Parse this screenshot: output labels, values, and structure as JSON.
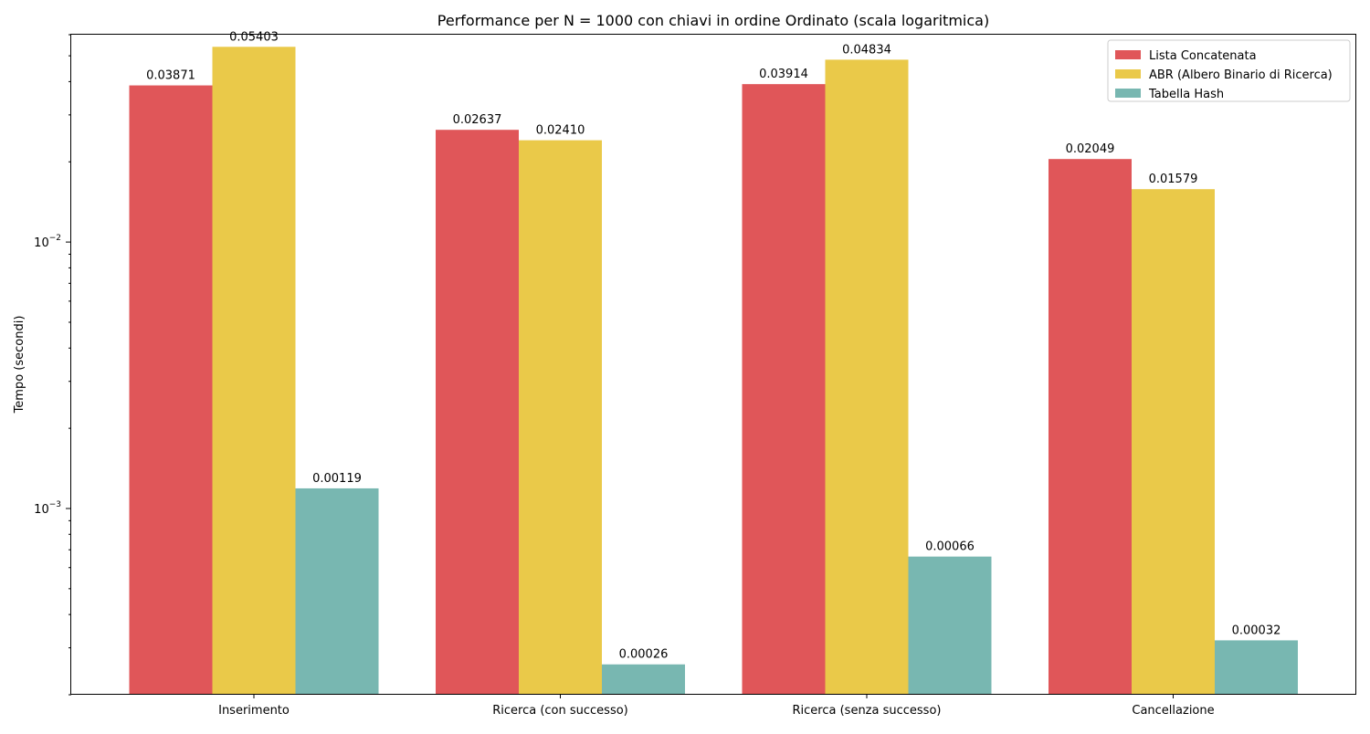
{
  "chart_data": {
    "type": "bar",
    "title": "Performance per N = 1000 con chiavi in ordine Ordinato (scala logaritmica)",
    "xlabel": "",
    "ylabel": "Tempo (secondi)",
    "yscale": "log",
    "ylim": [
      0.0002,
      0.06
    ],
    "yticks": [
      {
        "value": 0.01,
        "base": "10",
        "exp": "−2"
      },
      {
        "value": 0.001,
        "base": "10",
        "exp": "−3"
      }
    ],
    "categories": [
      "Inserimento",
      "Ricerca (con successo)",
      "Ricerca (senza successo)",
      "Cancellazione"
    ],
    "series": [
      {
        "name": "Lista Concatenata",
        "color": "#e05659",
        "values": [
          0.03871,
          0.02637,
          0.03914,
          0.02049
        ],
        "labels": [
          "0.03871",
          "0.02637",
          "0.03914",
          "0.02049"
        ]
      },
      {
        "name": "ABR (Albero Binario di Ricerca)",
        "color": "#eac949",
        "values": [
          0.05403,
          0.0241,
          0.04834,
          0.01579
        ],
        "labels": [
          "0.05403",
          "0.02410",
          "0.04834",
          "0.01579"
        ]
      },
      {
        "name": "Tabella Hash",
        "color": "#78b7b1",
        "values": [
          0.00119,
          0.00026,
          0.00066,
          0.00032
        ],
        "labels": [
          "0.00119",
          "0.00026",
          "0.00066",
          "0.00032"
        ]
      }
    ],
    "legend": "top-right",
    "grid": false
  }
}
